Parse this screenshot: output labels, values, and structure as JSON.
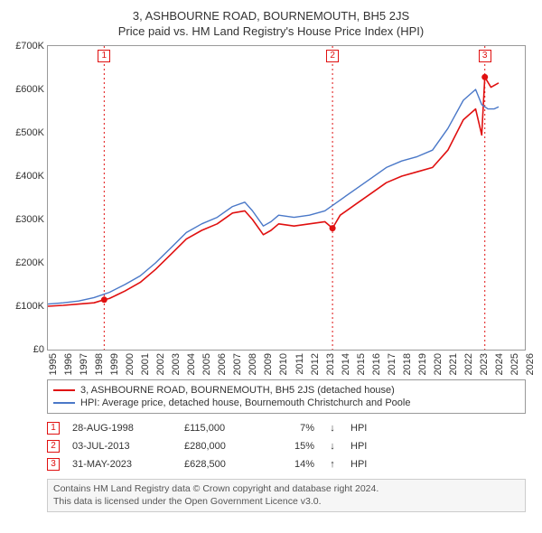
{
  "titles": {
    "line1": "3, ASHBOURNE ROAD, BOURNEMOUTH, BH5 2JS",
    "line2": "Price paid vs. HM Land Registry's House Price Index (HPI)"
  },
  "chart": {
    "type": "line",
    "background_color": "#ffffff",
    "axis_color": "#999999",
    "text_color": "#333333",
    "x": {
      "min": 1995,
      "max": 2026,
      "ticks": [
        1995,
        1996,
        1997,
        1998,
        1999,
        2000,
        2001,
        2002,
        2003,
        2004,
        2005,
        2006,
        2007,
        2008,
        2009,
        2010,
        2011,
        2012,
        2013,
        2014,
        2015,
        2016,
        2017,
        2018,
        2019,
        2020,
        2021,
        2022,
        2023,
        2024,
        2025,
        2026
      ]
    },
    "y": {
      "min": 0,
      "max": 700000,
      "ticks": [
        0,
        100000,
        200000,
        300000,
        400000,
        500000,
        600000,
        700000
      ],
      "labels": [
        "£0",
        "£100K",
        "£200K",
        "£300K",
        "£400K",
        "£500K",
        "£600K",
        "£700K"
      ]
    },
    "series": [
      {
        "id": "property",
        "color": "#e01010",
        "line_width": 1.6,
        "label": "3, ASHBOURNE ROAD, BOURNEMOUTH, BH5 2JS (detached house)",
        "data": [
          [
            1995,
            100000
          ],
          [
            1996,
            102000
          ],
          [
            1997,
            105000
          ],
          [
            1998,
            108000
          ],
          [
            1998.66,
            115000
          ],
          [
            1999,
            118000
          ],
          [
            2000,
            135000
          ],
          [
            2001,
            155000
          ],
          [
            2002,
            185000
          ],
          [
            2003,
            220000
          ],
          [
            2004,
            255000
          ],
          [
            2005,
            275000
          ],
          [
            2006,
            290000
          ],
          [
            2007,
            315000
          ],
          [
            2007.8,
            320000
          ],
          [
            2008.3,
            300000
          ],
          [
            2009,
            265000
          ],
          [
            2009.5,
            275000
          ],
          [
            2010,
            290000
          ],
          [
            2011,
            285000
          ],
          [
            2012,
            290000
          ],
          [
            2013,
            295000
          ],
          [
            2013.5,
            280000
          ],
          [
            2014,
            310000
          ],
          [
            2015,
            335000
          ],
          [
            2016,
            360000
          ],
          [
            2017,
            385000
          ],
          [
            2018,
            400000
          ],
          [
            2019,
            410000
          ],
          [
            2020,
            420000
          ],
          [
            2021,
            460000
          ],
          [
            2022,
            530000
          ],
          [
            2022.8,
            555000
          ],
          [
            2023.2,
            495000
          ],
          [
            2023.4,
            628500
          ],
          [
            2023.8,
            605000
          ],
          [
            2024.3,
            615000
          ]
        ]
      },
      {
        "id": "hpi",
        "color": "#4a78c8",
        "line_width": 1.4,
        "label": "HPI: Average price, detached house, Bournemouth Christchurch and Poole",
        "data": [
          [
            1995,
            105000
          ],
          [
            1996,
            108000
          ],
          [
            1997,
            112000
          ],
          [
            1998,
            120000
          ],
          [
            1999,
            132000
          ],
          [
            2000,
            150000
          ],
          [
            2001,
            170000
          ],
          [
            2002,
            200000
          ],
          [
            2003,
            235000
          ],
          [
            2004,
            270000
          ],
          [
            2005,
            290000
          ],
          [
            2006,
            305000
          ],
          [
            2007,
            330000
          ],
          [
            2007.8,
            340000
          ],
          [
            2008.3,
            320000
          ],
          [
            2009,
            285000
          ],
          [
            2009.5,
            295000
          ],
          [
            2010,
            310000
          ],
          [
            2011,
            305000
          ],
          [
            2012,
            310000
          ],
          [
            2013,
            320000
          ],
          [
            2014,
            345000
          ],
          [
            2015,
            370000
          ],
          [
            2016,
            395000
          ],
          [
            2017,
            420000
          ],
          [
            2018,
            435000
          ],
          [
            2019,
            445000
          ],
          [
            2020,
            460000
          ],
          [
            2021,
            510000
          ],
          [
            2022,
            575000
          ],
          [
            2022.8,
            600000
          ],
          [
            2023.2,
            565000
          ],
          [
            2023.6,
            555000
          ],
          [
            2024.0,
            555000
          ],
          [
            2024.3,
            560000
          ]
        ]
      }
    ],
    "markers": [
      {
        "n": "1",
        "year": 1998.66,
        "line_color": "#e01010"
      },
      {
        "n": "2",
        "year": 2013.5,
        "line_color": "#e01010"
      },
      {
        "n": "3",
        "year": 2023.4,
        "line_color": "#e01010"
      }
    ]
  },
  "legend": {
    "items": [
      {
        "color": "#e01010",
        "text": "3, ASHBOURNE ROAD, BOURNEMOUTH, BH5 2JS (detached house)"
      },
      {
        "color": "#4a78c8",
        "text": "HPI: Average price, detached house, Bournemouth Christchurch and Poole"
      }
    ]
  },
  "sales": [
    {
      "n": "1",
      "color": "#e01010",
      "date": "28-AUG-1998",
      "price": "£115,000",
      "pct": "7%",
      "arrow": "↓",
      "hpi": "HPI"
    },
    {
      "n": "2",
      "color": "#e01010",
      "date": "03-JUL-2013",
      "price": "£280,000",
      "pct": "15%",
      "arrow": "↓",
      "hpi": "HPI"
    },
    {
      "n": "3",
      "color": "#e01010",
      "date": "31-MAY-2023",
      "price": "£628,500",
      "pct": "14%",
      "arrow": "↑",
      "hpi": "HPI"
    }
  ],
  "footer": {
    "line1": "Contains HM Land Registry data © Crown copyright and database right 2024.",
    "line2": "This data is licensed under the Open Government Licence v3.0."
  }
}
